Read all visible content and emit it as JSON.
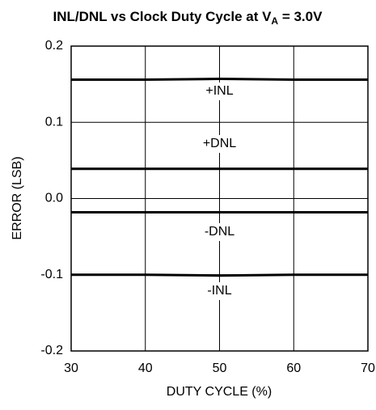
{
  "chart_data": {
    "type": "line",
    "title_parts": [
      "INL/DNL vs Clock Duty Cycle at V",
      "A",
      " = 3.0V"
    ],
    "x_label": "DUTY CYCLE (%)",
    "y_label": "ERROR (LSB)",
    "x": [
      30,
      40,
      50,
      60,
      70
    ],
    "series": [
      {
        "name": "+INL",
        "color": "#000000",
        "values": [
          0.156,
          0.156,
          0.157,
          0.156,
          0.156
        ]
      },
      {
        "name": "+DNL",
        "color": "#000000",
        "values": [
          0.039,
          0.039,
          0.039,
          0.039,
          0.039
        ]
      },
      {
        "name": "-DNL",
        "color": "#000000",
        "values": [
          -0.018,
          -0.018,
          -0.018,
          -0.018,
          -0.018
        ]
      },
      {
        "name": "-INL",
        "color": "#000000",
        "values": [
          -0.1,
          -0.1,
          -0.101,
          -0.1,
          -0.1
        ]
      }
    ],
    "xlim": [
      30,
      70
    ],
    "xticks": [
      30,
      40,
      50,
      60,
      70
    ],
    "ylim": [
      -0.2,
      0.2
    ],
    "yticks": [
      -0.2,
      -0.1,
      {
        "value": 0,
        "label": "0.0"
      },
      0.1,
      0.2
    ],
    "grid": true
  }
}
